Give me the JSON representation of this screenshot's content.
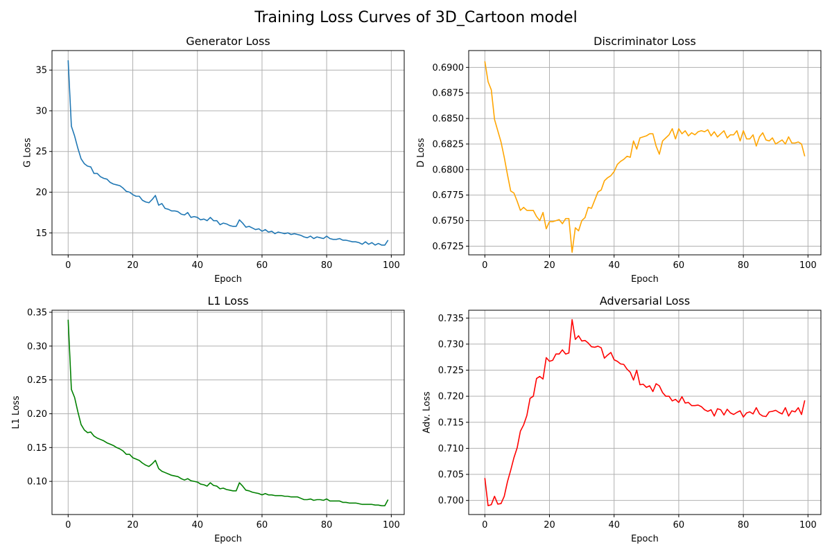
{
  "figure": {
    "suptitle": "Training Loss Curves of 3D_Cartoon model"
  },
  "chart_data": [
    {
      "type": "line",
      "title": "Generator Loss",
      "xlabel": "Epoch",
      "ylabel": "G Loss",
      "color": "#1f77b4",
      "grid": true,
      "xlim": [
        -5,
        104
      ],
      "ylim": [
        12.3,
        37.4
      ],
      "xticks": [
        0,
        20,
        40,
        60,
        80,
        100
      ],
      "yticks": [
        15,
        20,
        25,
        30,
        35
      ],
      "ytick_labels": [
        "15",
        "20",
        "25",
        "30",
        "35"
      ],
      "x_start": 0,
      "values": [
        36.2,
        28.1,
        26.9,
        25.4,
        24.1,
        23.5,
        23.2,
        23.1,
        22.3,
        22.3,
        21.9,
        21.7,
        21.6,
        21.2,
        21.0,
        20.9,
        20.8,
        20.5,
        20.1,
        20.0,
        19.7,
        19.5,
        19.5,
        19.0,
        18.8,
        18.7,
        19.1,
        19.6,
        18.4,
        18.6,
        18.0,
        17.9,
        17.7,
        17.7,
        17.6,
        17.3,
        17.2,
        17.5,
        16.9,
        17.0,
        16.9,
        16.6,
        16.7,
        16.5,
        16.9,
        16.5,
        16.5,
        16.0,
        16.2,
        16.1,
        15.9,
        15.8,
        15.8,
        16.6,
        16.2,
        15.7,
        15.8,
        15.6,
        15.4,
        15.5,
        15.2,
        15.4,
        15.1,
        15.2,
        14.9,
        15.1,
        15.0,
        14.9,
        15.0,
        14.8,
        14.9,
        14.8,
        14.7,
        14.5,
        14.4,
        14.6,
        14.3,
        14.5,
        14.4,
        14.3,
        14.6,
        14.3,
        14.2,
        14.2,
        14.3,
        14.1,
        14.1,
        14.0,
        13.9,
        13.9,
        13.8,
        13.6,
        13.9,
        13.6,
        13.8,
        13.5,
        13.7,
        13.5,
        13.5,
        14.1
      ]
    },
    {
      "type": "line",
      "title": "Discriminator Loss",
      "xlabel": "Epoch",
      "ylabel": "D Loss",
      "color": "#ffa500",
      "grid": true,
      "xlim": [
        -5,
        104
      ],
      "ylim": [
        0.67165,
        0.69165
      ],
      "xticks": [
        0,
        20,
        40,
        60,
        80,
        100
      ],
      "yticks": [
        0.6725,
        0.675,
        0.6775,
        0.68,
        0.6825,
        0.685,
        0.6875,
        0.69
      ],
      "ytick_labels": [
        "0.6725",
        "0.6750",
        "0.6775",
        "0.6800",
        "0.6825",
        "0.6850",
        "0.6875",
        "0.6900"
      ],
      "x_start": 0,
      "values": [
        0.6906,
        0.6886,
        0.6878,
        0.6849,
        0.6838,
        0.6827,
        0.6812,
        0.6795,
        0.6779,
        0.6777,
        0.6769,
        0.676,
        0.6763,
        0.676,
        0.676,
        0.676,
        0.6754,
        0.675,
        0.6758,
        0.6742,
        0.6749,
        0.6749,
        0.675,
        0.6751,
        0.6747,
        0.6752,
        0.6752,
        0.6719,
        0.6743,
        0.674,
        0.675,
        0.6753,
        0.6763,
        0.6762,
        0.677,
        0.6778,
        0.678,
        0.6789,
        0.6792,
        0.6794,
        0.6798,
        0.6805,
        0.6808,
        0.681,
        0.6813,
        0.6812,
        0.6828,
        0.682,
        0.6831,
        0.6832,
        0.6833,
        0.6835,
        0.6835,
        0.6823,
        0.6815,
        0.6828,
        0.6831,
        0.6834,
        0.684,
        0.683,
        0.684,
        0.6835,
        0.6838,
        0.6833,
        0.6836,
        0.6834,
        0.6837,
        0.6838,
        0.6837,
        0.6839,
        0.6833,
        0.6837,
        0.6832,
        0.6835,
        0.6838,
        0.6831,
        0.6834,
        0.6834,
        0.6838,
        0.6828,
        0.6838,
        0.683,
        0.683,
        0.6834,
        0.6823,
        0.6832,
        0.6836,
        0.6829,
        0.6828,
        0.6831,
        0.6825,
        0.6827,
        0.6829,
        0.6825,
        0.6832,
        0.6826,
        0.6826,
        0.6827,
        0.6825,
        0.6813
      ]
    },
    {
      "type": "line",
      "title": "L1 Loss",
      "xlabel": "Epoch",
      "ylabel": "L1 Loss",
      "color": "#008000",
      "grid": true,
      "xlim": [
        -5,
        104
      ],
      "ylim": [
        0.051,
        0.353
      ],
      "xticks": [
        0,
        20,
        40,
        60,
        80,
        100
      ],
      "yticks": [
        0.1,
        0.15,
        0.2,
        0.25,
        0.3,
        0.35
      ],
      "ytick_labels": [
        "0.10",
        "0.15",
        "0.20",
        "0.25",
        "0.30",
        "0.35"
      ],
      "x_start": 0,
      "values": [
        0.339,
        0.236,
        0.224,
        0.203,
        0.184,
        0.176,
        0.172,
        0.173,
        0.167,
        0.164,
        0.162,
        0.16,
        0.157,
        0.155,
        0.153,
        0.15,
        0.148,
        0.145,
        0.14,
        0.14,
        0.135,
        0.133,
        0.131,
        0.127,
        0.124,
        0.122,
        0.126,
        0.131,
        0.119,
        0.115,
        0.113,
        0.111,
        0.109,
        0.108,
        0.107,
        0.104,
        0.102,
        0.104,
        0.101,
        0.1,
        0.099,
        0.096,
        0.095,
        0.093,
        0.098,
        0.094,
        0.093,
        0.089,
        0.09,
        0.088,
        0.087,
        0.086,
        0.086,
        0.098,
        0.093,
        0.087,
        0.086,
        0.084,
        0.083,
        0.082,
        0.08,
        0.082,
        0.08,
        0.08,
        0.079,
        0.079,
        0.079,
        0.078,
        0.078,
        0.077,
        0.077,
        0.077,
        0.075,
        0.073,
        0.073,
        0.074,
        0.072,
        0.073,
        0.073,
        0.072,
        0.074,
        0.071,
        0.071,
        0.071,
        0.071,
        0.069,
        0.069,
        0.068,
        0.068,
        0.068,
        0.067,
        0.066,
        0.066,
        0.066,
        0.066,
        0.065,
        0.065,
        0.064,
        0.064,
        0.073
      ]
    },
    {
      "type": "line",
      "title": "Adversarial Loss",
      "xlabel": "Epoch",
      "ylabel": "Adv. Loss",
      "color": "#ff0000",
      "grid": true,
      "xlim": [
        -5,
        104
      ],
      "ylim": [
        0.6973,
        0.7365
      ],
      "xticks": [
        0,
        20,
        40,
        60,
        80,
        100
      ],
      "yticks": [
        0.7,
        0.705,
        0.71,
        0.715,
        0.72,
        0.725,
        0.73,
        0.735
      ],
      "ytick_labels": [
        "0.700",
        "0.705",
        "0.710",
        "0.715",
        "0.720",
        "0.725",
        "0.730",
        "0.735"
      ],
      "x_start": 0,
      "values": [
        0.7043,
        0.699,
        0.6992,
        0.7008,
        0.6993,
        0.6994,
        0.7008,
        0.7036,
        0.7058,
        0.7082,
        0.7101,
        0.7133,
        0.7145,
        0.7163,
        0.7196,
        0.72,
        0.7234,
        0.7238,
        0.7233,
        0.7274,
        0.7267,
        0.7269,
        0.7281,
        0.7281,
        0.7289,
        0.7281,
        0.7283,
        0.7347,
        0.7309,
        0.7316,
        0.7306,
        0.7307,
        0.7302,
        0.7295,
        0.7294,
        0.7296,
        0.7293,
        0.7273,
        0.7279,
        0.7284,
        0.727,
        0.7267,
        0.7262,
        0.7261,
        0.7252,
        0.7246,
        0.7231,
        0.725,
        0.7222,
        0.7223,
        0.7217,
        0.722,
        0.7209,
        0.7224,
        0.722,
        0.7207,
        0.72,
        0.72,
        0.7191,
        0.7194,
        0.7188,
        0.7199,
        0.7187,
        0.7188,
        0.7182,
        0.7182,
        0.7183,
        0.718,
        0.7174,
        0.7171,
        0.7174,
        0.7162,
        0.7176,
        0.7174,
        0.7164,
        0.7175,
        0.7168,
        0.7165,
        0.7169,
        0.7172,
        0.716,
        0.7168,
        0.717,
        0.7166,
        0.7178,
        0.7166,
        0.7162,
        0.7161,
        0.717,
        0.7171,
        0.7173,
        0.7169,
        0.7166,
        0.7178,
        0.7162,
        0.7172,
        0.717,
        0.7178,
        0.7165,
        0.7192
      ]
    }
  ]
}
